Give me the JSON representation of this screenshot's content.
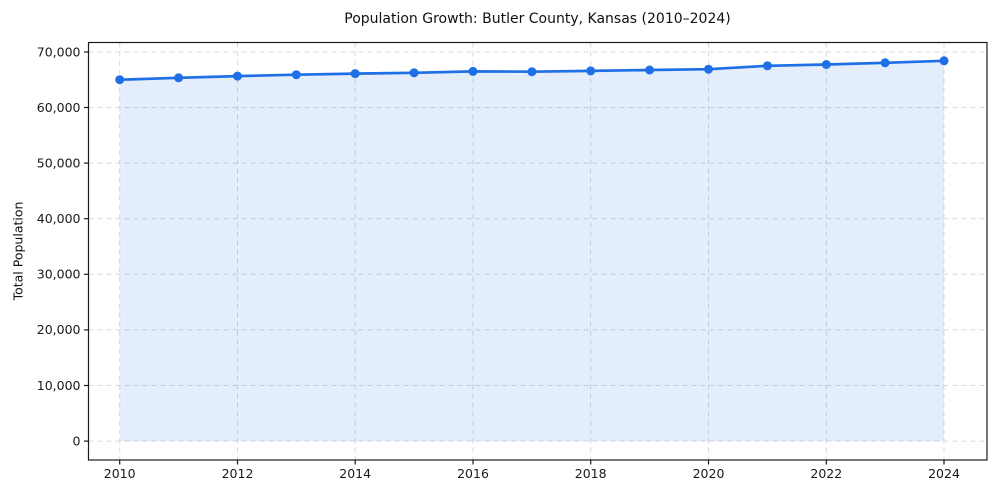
{
  "chart_data": {
    "type": "area",
    "title": "Population Growth: Butler County, Kansas (2010–2024)",
    "xlabel": "",
    "ylabel": "Total Population",
    "x": [
      2010,
      2011,
      2012,
      2013,
      2014,
      2015,
      2016,
      2017,
      2018,
      2019,
      2020,
      2021,
      2022,
      2023,
      2024
    ],
    "series": [
      {
        "name": "Total Population",
        "values": [
          65000,
          65350,
          65650,
          65900,
          66100,
          66250,
          66500,
          66450,
          66600,
          66750,
          66900,
          67500,
          67750,
          68050,
          68400
        ]
      }
    ],
    "x_ticks": [
      2010,
      2012,
      2014,
      2016,
      2018,
      2020,
      2022,
      2024
    ],
    "x_tick_labels": [
      "2010",
      "2012",
      "2014",
      "2016",
      "2018",
      "2020",
      "2022",
      "2024"
    ],
    "y_ticks": [
      0,
      10000,
      20000,
      30000,
      40000,
      50000,
      60000,
      70000
    ],
    "y_tick_labels": [
      "0",
      "10,000",
      "20,000",
      "30,000",
      "40,000",
      "50,000",
      "60,000",
      "70,000"
    ],
    "xlim": [
      2009.47,
      2024.73
    ],
    "ylim": [
      -3400,
      71700
    ],
    "grid": "dashed",
    "legend": "none",
    "marker": "circle",
    "colors": {
      "line": "#1f6fe6",
      "marker": "#1f6fe6",
      "fill": "#1f6fe6",
      "fill_opacity": 0.12,
      "grid": "#d8d8d8",
      "axis": "#1a1a1a",
      "text": "#1a1a1a",
      "background": "#ffffff"
    }
  }
}
